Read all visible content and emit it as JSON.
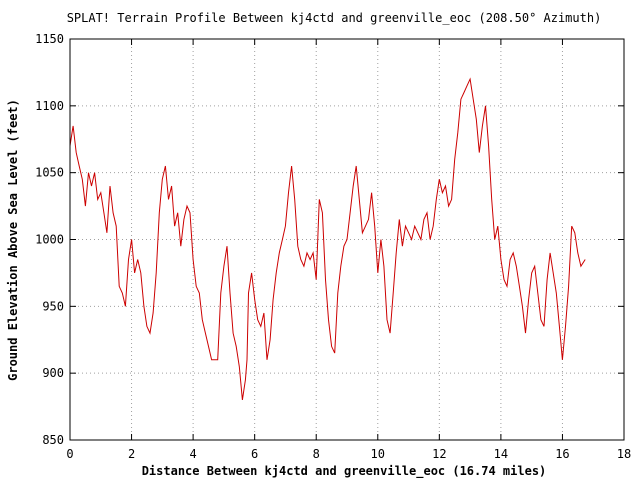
{
  "chart_data": {
    "type": "line",
    "title": "SPLAT! Terrain Profile Between kj4ctd and greenville_eoc (208.50° Azimuth)",
    "xlabel": "Distance Between kj4ctd and greenville_eoc (16.74 miles)",
    "ylabel": "Ground Elevation Above Sea Level (feet)",
    "xlim": [
      0,
      18
    ],
    "ylim": [
      850,
      1150
    ],
    "xticks": [
      "0",
      "2",
      "4",
      "6",
      "8",
      "10",
      "12",
      "14",
      "16",
      "18"
    ],
    "yticks": [
      "850",
      "900",
      "950",
      "1000",
      "1050",
      "1100",
      "1150"
    ],
    "grid": true,
    "line_color": "#cc0000",
    "series": [
      {
        "x": [
          0.0,
          0.1,
          0.2,
          0.3,
          0.4,
          0.5,
          0.6,
          0.7,
          0.8,
          0.9,
          1.0,
          1.1,
          1.2,
          1.3,
          1.4,
          1.5,
          1.6,
          1.7,
          1.8,
          1.9,
          2.0,
          2.1,
          2.2,
          2.3,
          2.4,
          2.5,
          2.6,
          2.7,
          2.8,
          2.9,
          3.0,
          3.1,
          3.2,
          3.3,
          3.4,
          3.5,
          3.6,
          3.7,
          3.8,
          3.9,
          4.0,
          4.1,
          4.2,
          4.3,
          4.4,
          4.5,
          4.6,
          4.7,
          4.8,
          4.9,
          5.0,
          5.1,
          5.2,
          5.3,
          5.4,
          5.5,
          5.6,
          5.7,
          5.75,
          5.8,
          5.9,
          6.0,
          6.1,
          6.2,
          6.3,
          6.4,
          6.5,
          6.6,
          6.7,
          6.8,
          6.9,
          7.0,
          7.1,
          7.2,
          7.3,
          7.4,
          7.5,
          7.6,
          7.7,
          7.8,
          7.9,
          8.0,
          8.1,
          8.2,
          8.3,
          8.4,
          8.5,
          8.6,
          8.7,
          8.8,
          8.9,
          9.0,
          9.1,
          9.2,
          9.3,
          9.4,
          9.5,
          9.6,
          9.7,
          9.8,
          9.9,
          10.0,
          10.1,
          10.2,
          10.3,
          10.4,
          10.5,
          10.6,
          10.7,
          10.8,
          10.9,
          11.0,
          11.1,
          11.2,
          11.3,
          11.4,
          11.5,
          11.6,
          11.7,
          11.8,
          11.9,
          12.0,
          12.1,
          12.2,
          12.3,
          12.4,
          12.5,
          12.6,
          12.7,
          12.8,
          12.9,
          13.0,
          13.1,
          13.2,
          13.3,
          13.4,
          13.5,
          13.6,
          13.7,
          13.8,
          13.9,
          14.0,
          14.1,
          14.2,
          14.3,
          14.4,
          14.5,
          14.6,
          14.7,
          14.8,
          14.9,
          15.0,
          15.1,
          15.2,
          15.3,
          15.4,
          15.5,
          15.6,
          15.7,
          15.8,
          15.9,
          16.0,
          16.1,
          16.2,
          16.3,
          16.4,
          16.5,
          16.6,
          16.74
        ],
        "y": [
          1070,
          1085,
          1065,
          1055,
          1045,
          1025,
          1050,
          1040,
          1050,
          1030,
          1035,
          1020,
          1005,
          1040,
          1020,
          1010,
          965,
          960,
          950,
          985,
          1000,
          975,
          985,
          975,
          950,
          935,
          930,
          945,
          975,
          1020,
          1045,
          1055,
          1030,
          1040,
          1010,
          1020,
          995,
          1015,
          1025,
          1020,
          985,
          965,
          960,
          940,
          930,
          920,
          910,
          910,
          910,
          960,
          980,
          995,
          960,
          930,
          920,
          905,
          880,
          895,
          910,
          960,
          975,
          955,
          940,
          935,
          945,
          910,
          925,
          955,
          975,
          990,
          1000,
          1010,
          1035,
          1055,
          1030,
          995,
          985,
          980,
          990,
          985,
          990,
          970,
          1030,
          1020,
          970,
          940,
          920,
          915,
          960,
          980,
          995,
          1000,
          1020,
          1040,
          1055,
          1030,
          1005,
          1010,
          1015,
          1035,
          1010,
          975,
          1000,
          980,
          940,
          930,
          960,
          990,
          1015,
          995,
          1010,
          1005,
          1000,
          1010,
          1005,
          1000,
          1015,
          1020,
          1000,
          1010,
          1030,
          1045,
          1035,
          1040,
          1025,
          1030,
          1060,
          1080,
          1105,
          1110,
          1115,
          1120,
          1105,
          1090,
          1065,
          1085,
          1100,
          1070,
          1030,
          1000,
          1010,
          985,
          970,
          965,
          985,
          990,
          980,
          965,
          950,
          930,
          955,
          975,
          980,
          960,
          940,
          935,
          970,
          990,
          975,
          960,
          935,
          910,
          935,
          965,
          1010,
          1005,
          990,
          980,
          985
        ]
      }
    ]
  }
}
